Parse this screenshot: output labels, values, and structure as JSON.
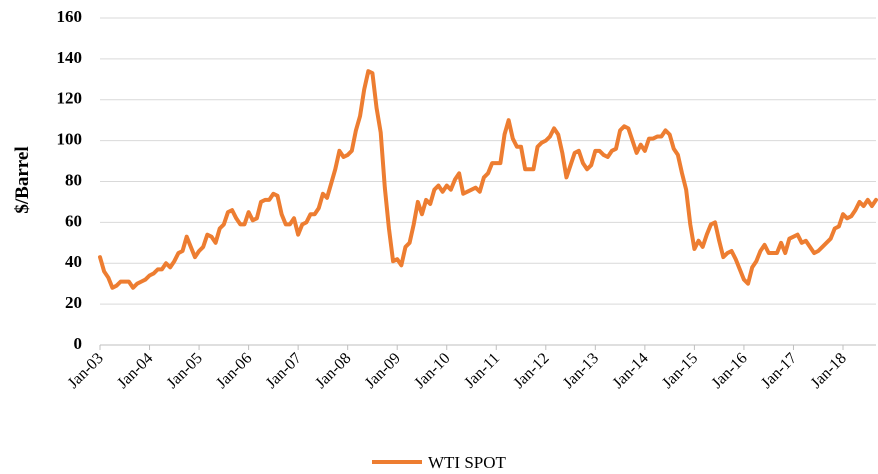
{
  "chart_data": {
    "type": "line",
    "y_label": "$/Barrel",
    "categories": [
      "Jan-03",
      null,
      null,
      null,
      null,
      null,
      null,
      null,
      null,
      null,
      null,
      null,
      "Jan-04",
      null,
      null,
      null,
      null,
      null,
      null,
      null,
      null,
      null,
      null,
      null,
      "Jan-05",
      null,
      null,
      null,
      null,
      null,
      null,
      null,
      null,
      null,
      null,
      null,
      "Jan-06",
      null,
      null,
      null,
      null,
      null,
      null,
      null,
      null,
      null,
      null,
      null,
      "Jan-07",
      null,
      null,
      null,
      null,
      null,
      null,
      null,
      null,
      null,
      null,
      null,
      "Jan-08",
      null,
      null,
      null,
      null,
      null,
      null,
      null,
      null,
      null,
      null,
      null,
      "Jan-09",
      null,
      null,
      null,
      null,
      null,
      null,
      null,
      null,
      null,
      null,
      null,
      "Jan-10",
      null,
      null,
      null,
      null,
      null,
      null,
      null,
      null,
      null,
      null,
      null,
      "Jan-11",
      null,
      null,
      null,
      null,
      null,
      null,
      null,
      null,
      null,
      null,
      null,
      "Jan-12",
      null,
      null,
      null,
      null,
      null,
      null,
      null,
      null,
      null,
      null,
      null,
      "Jan-13",
      null,
      null,
      null,
      null,
      null,
      null,
      null,
      null,
      null,
      null,
      null,
      "Jan-14",
      null,
      null,
      null,
      null,
      null,
      null,
      null,
      null,
      null,
      null,
      null,
      "Jan-15",
      null,
      null,
      null,
      null,
      null,
      null,
      null,
      null,
      null,
      null,
      null,
      "Jan-16",
      null,
      null,
      null,
      null,
      null,
      null,
      null,
      null,
      null,
      null,
      null,
      "Jan-17",
      null,
      null,
      null,
      null,
      null,
      null,
      null,
      null,
      null,
      null,
      null,
      "Jan-18",
      null,
      null,
      null,
      null,
      null,
      null,
      null,
      null
    ],
    "series": [
      {
        "name": "WTI SPOT",
        "color": "#ed7d31",
        "values": [
          43,
          36,
          33,
          28,
          29,
          31,
          31,
          31,
          28,
          30,
          31,
          32,
          34,
          35,
          37,
          37,
          40,
          38,
          41,
          45,
          46,
          53,
          48,
          43,
          46,
          48,
          54,
          53,
          50,
          57,
          59,
          65,
          66,
          62,
          59,
          59,
          65,
          61,
          62,
          70,
          71,
          71,
          74,
          73,
          64,
          59,
          59,
          62,
          54,
          59,
          60,
          64,
          64,
          67,
          74,
          72,
          79,
          86,
          95,
          92,
          93,
          95,
          105,
          112,
          125,
          134,
          133,
          116,
          104,
          77,
          57,
          41,
          42,
          39,
          48,
          50,
          59,
          70,
          64,
          71,
          69,
          76,
          78,
          75,
          78,
          76,
          81,
          84,
          74,
          75,
          76,
          77,
          75,
          82,
          84,
          89,
          89,
          89,
          103,
          110,
          101,
          97,
          97,
          86,
          86,
          86,
          97,
          99,
          100,
          102,
          106,
          103,
          94,
          82,
          88,
          94,
          95,
          89,
          86,
          88,
          95,
          95,
          93,
          92,
          95,
          96,
          105,
          107,
          106,
          100,
          94,
          98,
          95,
          101,
          101,
          102,
          102,
          105,
          103,
          96,
          93,
          84,
          76,
          59,
          47,
          51,
          48,
          54,
          59,
          60,
          51,
          43,
          45,
          46,
          42,
          37,
          32,
          30,
          38,
          41,
          46,
          49,
          45,
          45,
          45,
          50,
          45,
          52,
          53,
          54,
          50,
          51,
          48,
          45,
          46,
          48,
          50,
          52,
          57,
          58,
          64,
          62,
          63,
          66,
          70,
          68,
          71,
          68,
          71
        ]
      }
    ],
    "ylim": [
      0,
      160
    ],
    "yticks": [
      0,
      20,
      40,
      60,
      80,
      100,
      120,
      140,
      160
    ],
    "grid": true,
    "legend": "bottom"
  }
}
